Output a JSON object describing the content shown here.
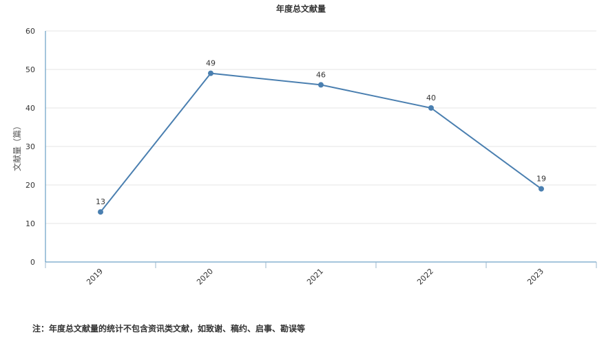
{
  "chart_data": {
    "type": "line",
    "title": "年度总文献量",
    "xlabel": "",
    "ylabel": "文献量（篇）",
    "categories": [
      "2019",
      "2020",
      "2021",
      "2022",
      "2023"
    ],
    "series": [
      {
        "values": [
          13,
          49,
          46,
          40,
          19
        ]
      }
    ],
    "ylim": [
      0,
      60
    ],
    "yticks": [
      0,
      10,
      20,
      30,
      40,
      50,
      60
    ],
    "data_labels": true,
    "grid": true,
    "legend": "none",
    "colors": {
      "series": "#4a7fb0",
      "axis": "#4a8bb8",
      "grid": "#e6e6e6"
    }
  },
  "footnote": "注：年度总文献量的统计不包含资讯类文献，如致谢、稿约、启事、勘误等"
}
